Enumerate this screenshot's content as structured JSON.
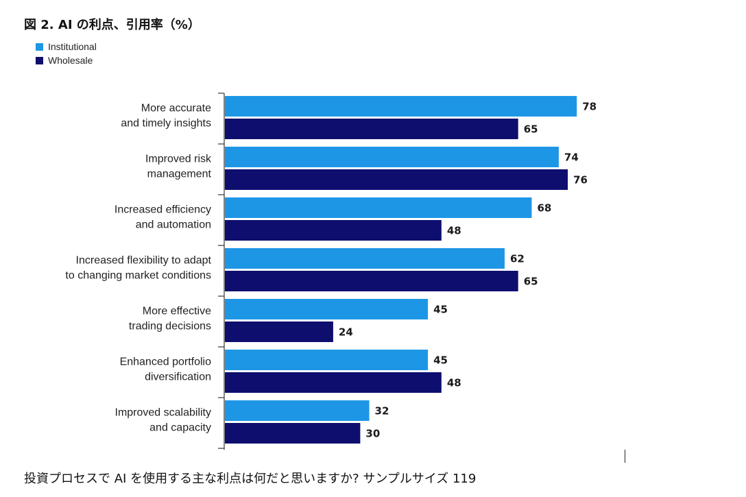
{
  "chart_data": {
    "type": "bar",
    "orientation": "horizontal",
    "title": "図 2. AI の利点、引用率（%）",
    "categories": [
      [
        "More accurate",
        "and timely insights"
      ],
      [
        "Improved risk",
        "management"
      ],
      [
        "Increased efficiency",
        "and automation"
      ],
      [
        "Increased flexibility to adapt",
        "to changing market conditions"
      ],
      [
        "More effective",
        "trading decisions"
      ],
      [
        "Enhanced portfolio",
        "diversification"
      ],
      [
        "Improved scalability",
        "and capacity"
      ]
    ],
    "series": [
      {
        "name": "Institutional",
        "color": "#1e96e6",
        "values": [
          78,
          74,
          68,
          62,
          45,
          45,
          32
        ]
      },
      {
        "name": "Wholesale",
        "color": "#0d0e6e",
        "values": [
          65,
          76,
          48,
          65,
          24,
          48,
          30
        ]
      }
    ],
    "xlim": [
      0,
      100
    ],
    "xlabel": "",
    "ylabel": "",
    "grid": false,
    "legend_position": "top-left"
  },
  "footer": "投資プロセスで AI を使用する主な利点は何だと思いますか? サンプルサイズ 119"
}
